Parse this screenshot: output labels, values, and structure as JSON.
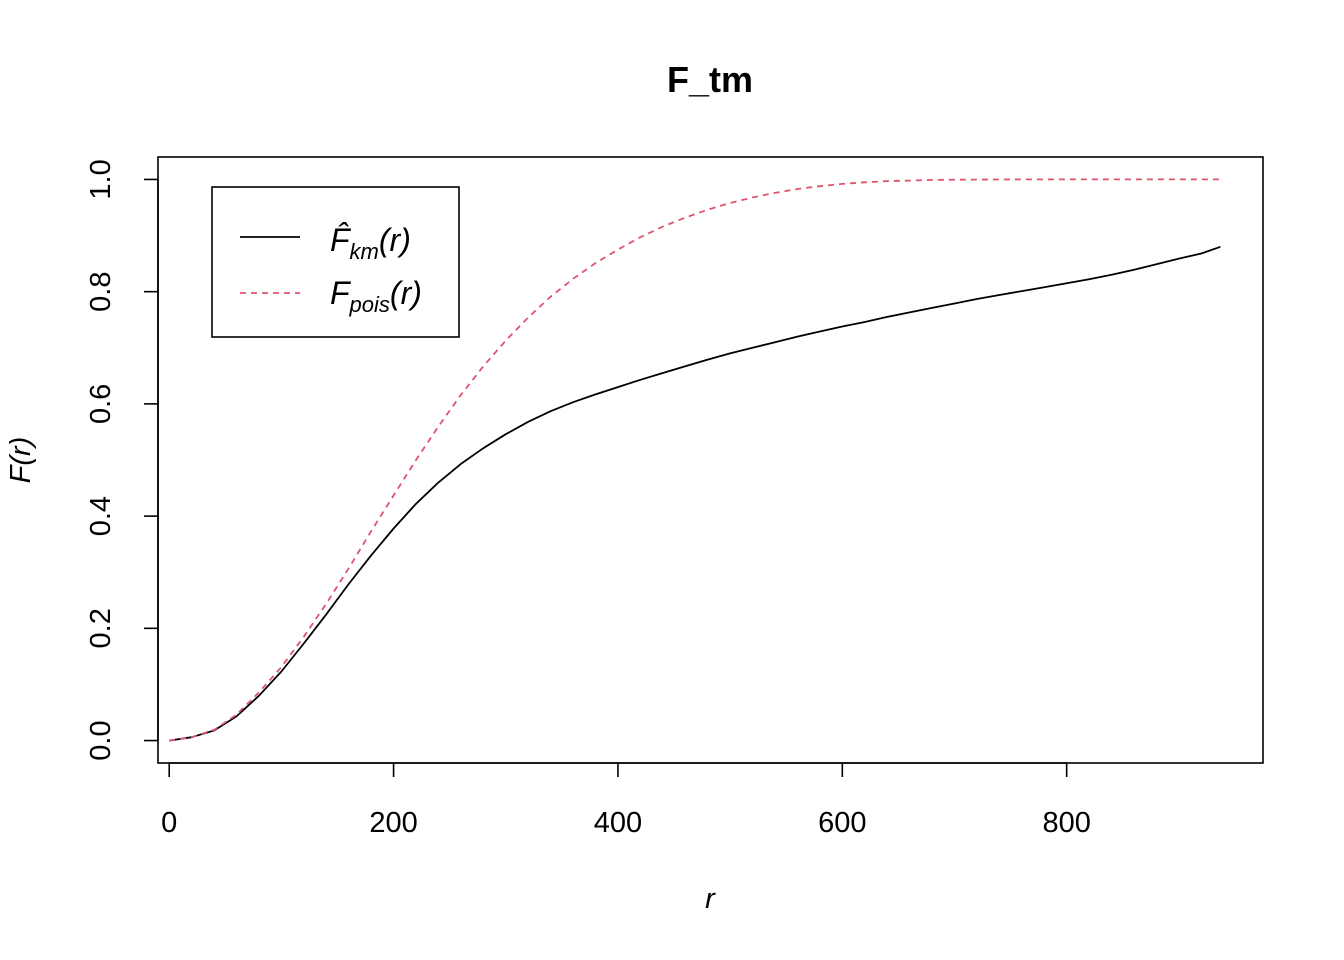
{
  "chart_data": {
    "type": "line",
    "title": "F_tm",
    "xlabel": "r",
    "ylabel": "F(r)",
    "xlim": [
      -10,
      975
    ],
    "ylim": [
      -0.04,
      1.04
    ],
    "x_ticks": [
      "0",
      "200",
      "400",
      "600",
      "800"
    ],
    "x_tick_values": [
      0,
      200,
      400,
      600,
      800
    ],
    "y_ticks": [
      "0.0",
      "0.2",
      "0.4",
      "0.6",
      "0.8",
      "1.0"
    ],
    "y_tick_values": [
      0,
      0.2,
      0.4,
      0.6,
      0.8,
      1.0
    ],
    "grid": false,
    "legend_position": "top-left",
    "series": [
      {
        "name": "F̂km(r)",
        "legend_main": "F̂",
        "legend_sub": "km",
        "legend_tail": "(r)",
        "color": "#000000",
        "dash": "solid",
        "x": [
          0,
          20,
          40,
          60,
          80,
          100,
          120,
          140,
          160,
          180,
          200,
          220,
          240,
          260,
          280,
          300,
          320,
          340,
          360,
          380,
          400,
          420,
          440,
          460,
          480,
          500,
          520,
          540,
          560,
          580,
          600,
          620,
          640,
          660,
          680,
          700,
          720,
          740,
          760,
          780,
          800,
          820,
          840,
          860,
          880,
          900,
          920,
          937
        ],
        "y": [
          0.0,
          0.006,
          0.018,
          0.043,
          0.08,
          0.123,
          0.173,
          0.225,
          0.279,
          0.33,
          0.378,
          0.422,
          0.46,
          0.493,
          0.521,
          0.546,
          0.568,
          0.587,
          0.603,
          0.617,
          0.63,
          0.643,
          0.655,
          0.667,
          0.679,
          0.69,
          0.7,
          0.71,
          0.72,
          0.729,
          0.738,
          0.746,
          0.755,
          0.763,
          0.771,
          0.779,
          0.787,
          0.794,
          0.801,
          0.808,
          0.815,
          0.822,
          0.83,
          0.839,
          0.849,
          0.859,
          0.868,
          0.88
        ]
      },
      {
        "name": "Fpois(r)",
        "legend_main": "F",
        "legend_sub": "pois",
        "legend_tail": "(r)",
        "color": "#DF536B",
        "dash": "dashed",
        "x": [
          0,
          20,
          40,
          60,
          80,
          100,
          120,
          140,
          160,
          180,
          200,
          220,
          240,
          260,
          280,
          300,
          320,
          340,
          360,
          380,
          400,
          420,
          440,
          460,
          480,
          500,
          520,
          540,
          560,
          580,
          600,
          620,
          640,
          660,
          680,
          700,
          720,
          740,
          760,
          780,
          800,
          820,
          840,
          860,
          880,
          900,
          920,
          937
        ],
        "y": [
          0.0,
          0.006,
          0.019,
          0.046,
          0.086,
          0.131,
          0.185,
          0.244,
          0.307,
          0.373,
          0.437,
          0.5,
          0.56,
          0.616,
          0.667,
          0.713,
          0.754,
          0.791,
          0.823,
          0.851,
          0.875,
          0.897,
          0.916,
          0.932,
          0.946,
          0.958,
          0.968,
          0.976,
          0.983,
          0.988,
          0.992,
          0.995,
          0.997,
          0.998,
          0.9992,
          0.9996,
          0.9998,
          0.9999,
          1.0,
          1.0,
          1.0,
          1.0,
          1.0,
          1.0,
          1.0,
          1.0,
          1.0,
          1.0
        ]
      }
    ]
  }
}
